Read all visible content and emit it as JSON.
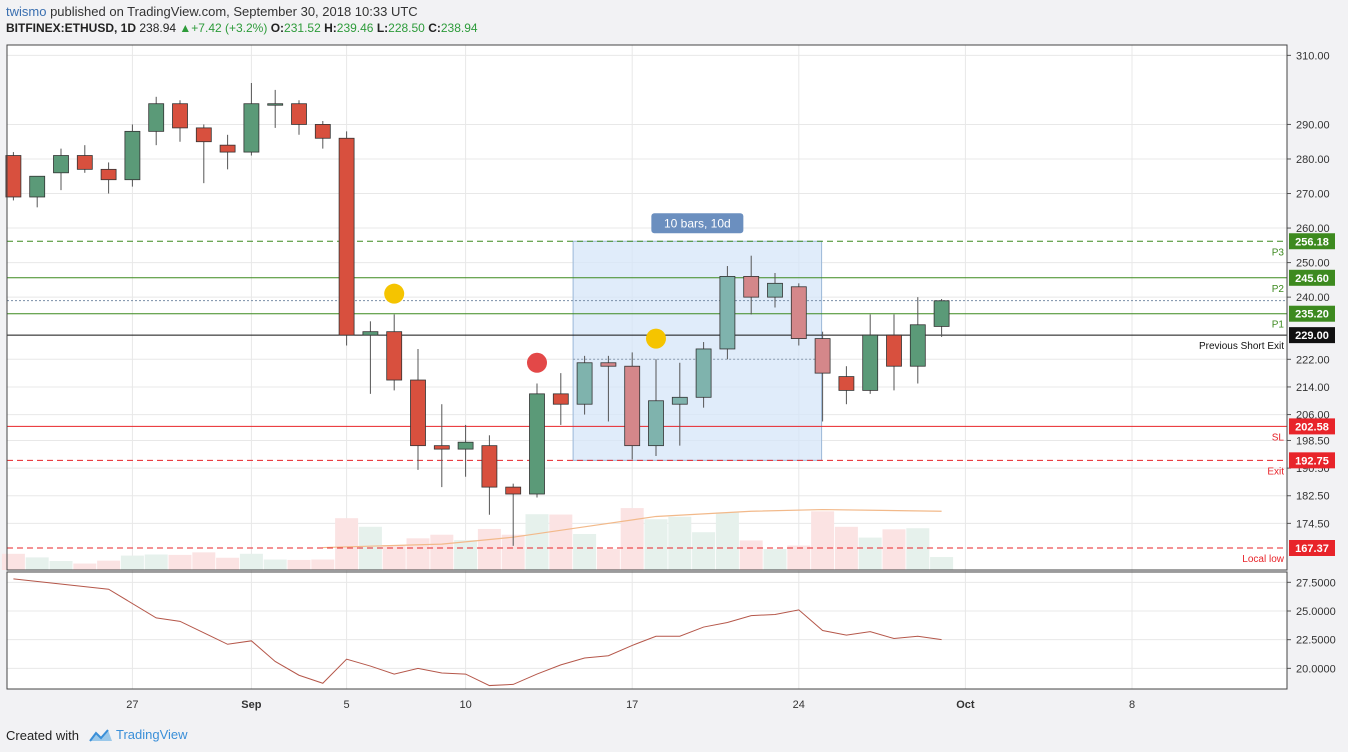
{
  "header": {
    "user": "twismo",
    "published_text": " published on TradingView.com, September 30, 2018 10:33 UTC",
    "symbol": "BITFINEX:ETHUSD, 1D",
    "last": "238.94",
    "change": "+7.42 (+3.2%)",
    "open_label": "O:",
    "open": "231.52",
    "high_label": "H:",
    "high": "239.46",
    "low_label": "L:",
    "low": "228.50",
    "close_label": "C:",
    "close": "238.94"
  },
  "footer": {
    "created_with": "Created with",
    "brand": "TradingView"
  },
  "colors": {
    "up": "#5b9a78",
    "down": "#d8503e",
    "grid": "#e8e8e8",
    "target": "#3d8a1f",
    "stop": "#e8242a",
    "box": "#d6e6f8",
    "box_label": "#6b8fbf"
  },
  "chart_data": {
    "type": "candlestick",
    "symbol": "BITFINEX:ETHUSD",
    "interval": "1D",
    "ylim": [
      161,
      313
    ],
    "price_ticks": [
      "310.00",
      "290.00",
      "280.00",
      "270.00",
      "260.00",
      "250.00",
      "240.00",
      "222.00",
      "214.00",
      "206.00",
      "198.50",
      "190.50",
      "182.50",
      "174.50"
    ],
    "x_ticks": [
      {
        "label": "27",
        "date": "2018-08-27"
      },
      {
        "label": "Sep",
        "date": "2018-09-01"
      },
      {
        "label": "5",
        "date": "2018-09-05"
      },
      {
        "label": "10",
        "date": "2018-09-10"
      },
      {
        "label": "17",
        "date": "2018-09-17"
      },
      {
        "label": "24",
        "date": "2018-09-24"
      },
      {
        "label": "Oct",
        "date": "2018-10-01"
      },
      {
        "label": "8",
        "date": "2018-10-08"
      }
    ],
    "candles": [
      {
        "date": "2018-08-22",
        "o": 281,
        "h": 282,
        "l": 268,
        "c": 269
      },
      {
        "date": "2018-08-23",
        "o": 269,
        "h": 275,
        "l": 266,
        "c": 275
      },
      {
        "date": "2018-08-24",
        "o": 276,
        "h": 283,
        "l": 271,
        "c": 281
      },
      {
        "date": "2018-08-25",
        "o": 281,
        "h": 284,
        "l": 276,
        "c": 277
      },
      {
        "date": "2018-08-26",
        "o": 277,
        "h": 279,
        "l": 270,
        "c": 274
      },
      {
        "date": "2018-08-27",
        "o": 274,
        "h": 290,
        "l": 272,
        "c": 288
      },
      {
        "date": "2018-08-28",
        "o": 288,
        "h": 298,
        "l": 284,
        "c": 296
      },
      {
        "date": "2018-08-29",
        "o": 296,
        "h": 297,
        "l": 285,
        "c": 289
      },
      {
        "date": "2018-08-30",
        "o": 289,
        "h": 290,
        "l": 273,
        "c": 285
      },
      {
        "date": "2018-08-31",
        "o": 284,
        "h": 287,
        "l": 277,
        "c": 282
      },
      {
        "date": "2018-09-01",
        "o": 282,
        "h": 302,
        "l": 281,
        "c": 296
      },
      {
        "date": "2018-09-02",
        "o": 296,
        "h": 300,
        "l": 289,
        "c": 296
      },
      {
        "date": "2018-09-03",
        "o": 296,
        "h": 297,
        "l": 287,
        "c": 290
      },
      {
        "date": "2018-09-04",
        "o": 290,
        "h": 291,
        "l": 283,
        "c": 286
      },
      {
        "date": "2018-09-05",
        "o": 286,
        "h": 288,
        "l": 226,
        "c": 229
      },
      {
        "date": "2018-09-06",
        "o": 229,
        "h": 233,
        "l": 212,
        "c": 230
      },
      {
        "date": "2018-09-07",
        "o": 230,
        "h": 235,
        "l": 213,
        "c": 216
      },
      {
        "date": "2018-09-08",
        "o": 216,
        "h": 225,
        "l": 190,
        "c": 197
      },
      {
        "date": "2018-09-09",
        "o": 197,
        "h": 209,
        "l": 185,
        "c": 196
      },
      {
        "date": "2018-09-10",
        "o": 196,
        "h": 203,
        "l": 188,
        "c": 198
      },
      {
        "date": "2018-09-11",
        "o": 197,
        "h": 200,
        "l": 177,
        "c": 185
      },
      {
        "date": "2018-09-12",
        "o": 185,
        "h": 186,
        "l": 168,
        "c": 183
      },
      {
        "date": "2018-09-13",
        "o": 183,
        "h": 215,
        "l": 182,
        "c": 212
      },
      {
        "date": "2018-09-14",
        "o": 212,
        "h": 218,
        "l": 203,
        "c": 209
      },
      {
        "date": "2018-09-15",
        "o": 209,
        "h": 223,
        "l": 206,
        "c": 221
      },
      {
        "date": "2018-09-16",
        "o": 221,
        "h": 223,
        "l": 204,
        "c": 220
      },
      {
        "date": "2018-09-17",
        "o": 220,
        "h": 224,
        "l": 193,
        "c": 197
      },
      {
        "date": "2018-09-18",
        "o": 197,
        "h": 222,
        "l": 194,
        "c": 210
      },
      {
        "date": "2018-09-19",
        "o": 209,
        "h": 221,
        "l": 197,
        "c": 211
      },
      {
        "date": "2018-09-20",
        "o": 211,
        "h": 227,
        "l": 208,
        "c": 225
      },
      {
        "date": "2018-09-21",
        "o": 225,
        "h": 249,
        "l": 222,
        "c": 246
      },
      {
        "date": "2018-09-22",
        "o": 246,
        "h": 252,
        "l": 235,
        "c": 240
      },
      {
        "date": "2018-09-23",
        "o": 240,
        "h": 247,
        "l": 237,
        "c": 244
      },
      {
        "date": "2018-09-24",
        "o": 243,
        "h": 244,
        "l": 226,
        "c": 228
      },
      {
        "date": "2018-09-25",
        "o": 228,
        "h": 230,
        "l": 204,
        "c": 218
      },
      {
        "date": "2018-09-26",
        "o": 217,
        "h": 220,
        "l": 209,
        "c": 213
      },
      {
        "date": "2018-09-27",
        "o": 213,
        "h": 235,
        "l": 212,
        "c": 229
      },
      {
        "date": "2018-09-28",
        "o": 229,
        "h": 235,
        "l": 213,
        "c": 220
      },
      {
        "date": "2018-09-29",
        "o": 220,
        "h": 240,
        "l": 215,
        "c": 232
      },
      {
        "date": "2018-09-30",
        "o": 231.52,
        "h": 239.46,
        "l": 228.5,
        "c": 238.94
      }
    ],
    "volume_relative": [
      0.45,
      0.35,
      0.25,
      0.18,
      0.26,
      0.4,
      0.43,
      0.42,
      0.49,
      0.34,
      0.45,
      0.29,
      0.28,
      0.29,
      1.44,
      1.2,
      0.69,
      0.88,
      0.98,
      0.83,
      1.14,
      0.98,
      1.55,
      1.54,
      1.0,
      0.58,
      1.72,
      1.41,
      1.48,
      1.05,
      1.6,
      0.82,
      0.58,
      0.68,
      1.63,
      1.2,
      0.9,
      1.13,
      1.16,
      0.36
    ],
    "volume_ma": [
      {
        "date": "2018-09-04",
        "v": 167.5
      },
      {
        "date": "2018-09-09",
        "v": 168.5
      },
      {
        "date": "2018-09-12",
        "v": 170.5
      },
      {
        "date": "2018-09-15",
        "v": 173.5
      },
      {
        "date": "2018-09-18",
        "v": 176.5
      },
      {
        "date": "2018-09-22",
        "v": 178
      },
      {
        "date": "2018-09-25",
        "v": 178.5
      },
      {
        "date": "2018-09-30",
        "v": 178
      }
    ],
    "levels": [
      {
        "name": "P3",
        "price": 256.18,
        "style": "dashed",
        "color": "#3d8a1f"
      },
      {
        "name": "P2",
        "price": 245.6,
        "style": "solid",
        "color": "#3d8a1f"
      },
      {
        "name": "",
        "price": 239,
        "style": "dotted",
        "color": "#7a8fa8"
      },
      {
        "name": "P1",
        "price": 235.2,
        "style": "solid",
        "color": "#3d8a1f"
      },
      {
        "name": "Previous Short Exit",
        "price": 229.0,
        "style": "solid",
        "color": "#111111"
      },
      {
        "name": "SL",
        "price": 202.58,
        "style": "solid",
        "color": "#e8242a"
      },
      {
        "name": "Exit",
        "price": 192.75,
        "style": "dashed",
        "color": "#e8242a"
      },
      {
        "name": "Local low",
        "price": 167.37,
        "style": "dashed",
        "color": "#e8242a"
      }
    ],
    "level_badges": [
      "256.18",
      "245.60",
      "235.20",
      "229.00",
      "202.58",
      "192.75",
      "167.37"
    ],
    "range_box": {
      "label": "10 bars, 10d",
      "start_date": "2018-09-15",
      "end_date": "2018-09-25",
      "top": 256.18,
      "bottom": 192.75,
      "mid": 222.0
    },
    "markers": [
      {
        "date": "2018-09-07",
        "price": 241,
        "color": "#f5c400"
      },
      {
        "date": "2018-09-13",
        "price": 221,
        "color": "#e34848"
      },
      {
        "date": "2018-09-18",
        "price": 228,
        "color": "#f5c400"
      }
    ],
    "oscillator": {
      "ticks": [
        "27.5000",
        "25.0000",
        "22.5000",
        "20.0000"
      ],
      "ylim": [
        18.2,
        28.4
      ],
      "points": [
        {
          "date": "2018-08-22",
          "v": 27.8
        },
        {
          "date": "2018-08-26",
          "v": 26.9
        },
        {
          "date": "2018-08-28",
          "v": 24.4
        },
        {
          "date": "2018-08-29",
          "v": 24.1
        },
        {
          "date": "2018-08-31",
          "v": 22.1
        },
        {
          "date": "2018-09-01",
          "v": 22.4
        },
        {
          "date": "2018-09-02",
          "v": 20.6
        },
        {
          "date": "2018-09-03",
          "v": 19.4
        },
        {
          "date": "2018-09-04",
          "v": 18.7
        },
        {
          "date": "2018-09-05",
          "v": 20.8
        },
        {
          "date": "2018-09-06",
          "v": 20.2
        },
        {
          "date": "2018-09-07",
          "v": 19.5
        },
        {
          "date": "2018-09-08",
          "v": 20.0
        },
        {
          "date": "2018-09-09",
          "v": 19.6
        },
        {
          "date": "2018-09-10",
          "v": 19.5
        },
        {
          "date": "2018-09-11",
          "v": 18.5
        },
        {
          "date": "2018-09-12",
          "v": 18.6
        },
        {
          "date": "2018-09-13",
          "v": 19.5
        },
        {
          "date": "2018-09-14",
          "v": 20.3
        },
        {
          "date": "2018-09-15",
          "v": 20.9
        },
        {
          "date": "2018-09-16",
          "v": 21.1
        },
        {
          "date": "2018-09-17",
          "v": 22.0
        },
        {
          "date": "2018-09-18",
          "v": 22.8
        },
        {
          "date": "2018-09-19",
          "v": 22.8
        },
        {
          "date": "2018-09-20",
          "v": 23.6
        },
        {
          "date": "2018-09-21",
          "v": 24.0
        },
        {
          "date": "2018-09-22",
          "v": 24.6
        },
        {
          "date": "2018-09-23",
          "v": 24.7
        },
        {
          "date": "2018-09-24",
          "v": 25.1
        },
        {
          "date": "2018-09-25",
          "v": 23.3
        },
        {
          "date": "2018-09-26",
          "v": 22.9
        },
        {
          "date": "2018-09-27",
          "v": 23.2
        },
        {
          "date": "2018-09-28",
          "v": 22.6
        },
        {
          "date": "2018-09-29",
          "v": 22.8
        },
        {
          "date": "2018-09-30",
          "v": 22.5
        }
      ]
    }
  }
}
